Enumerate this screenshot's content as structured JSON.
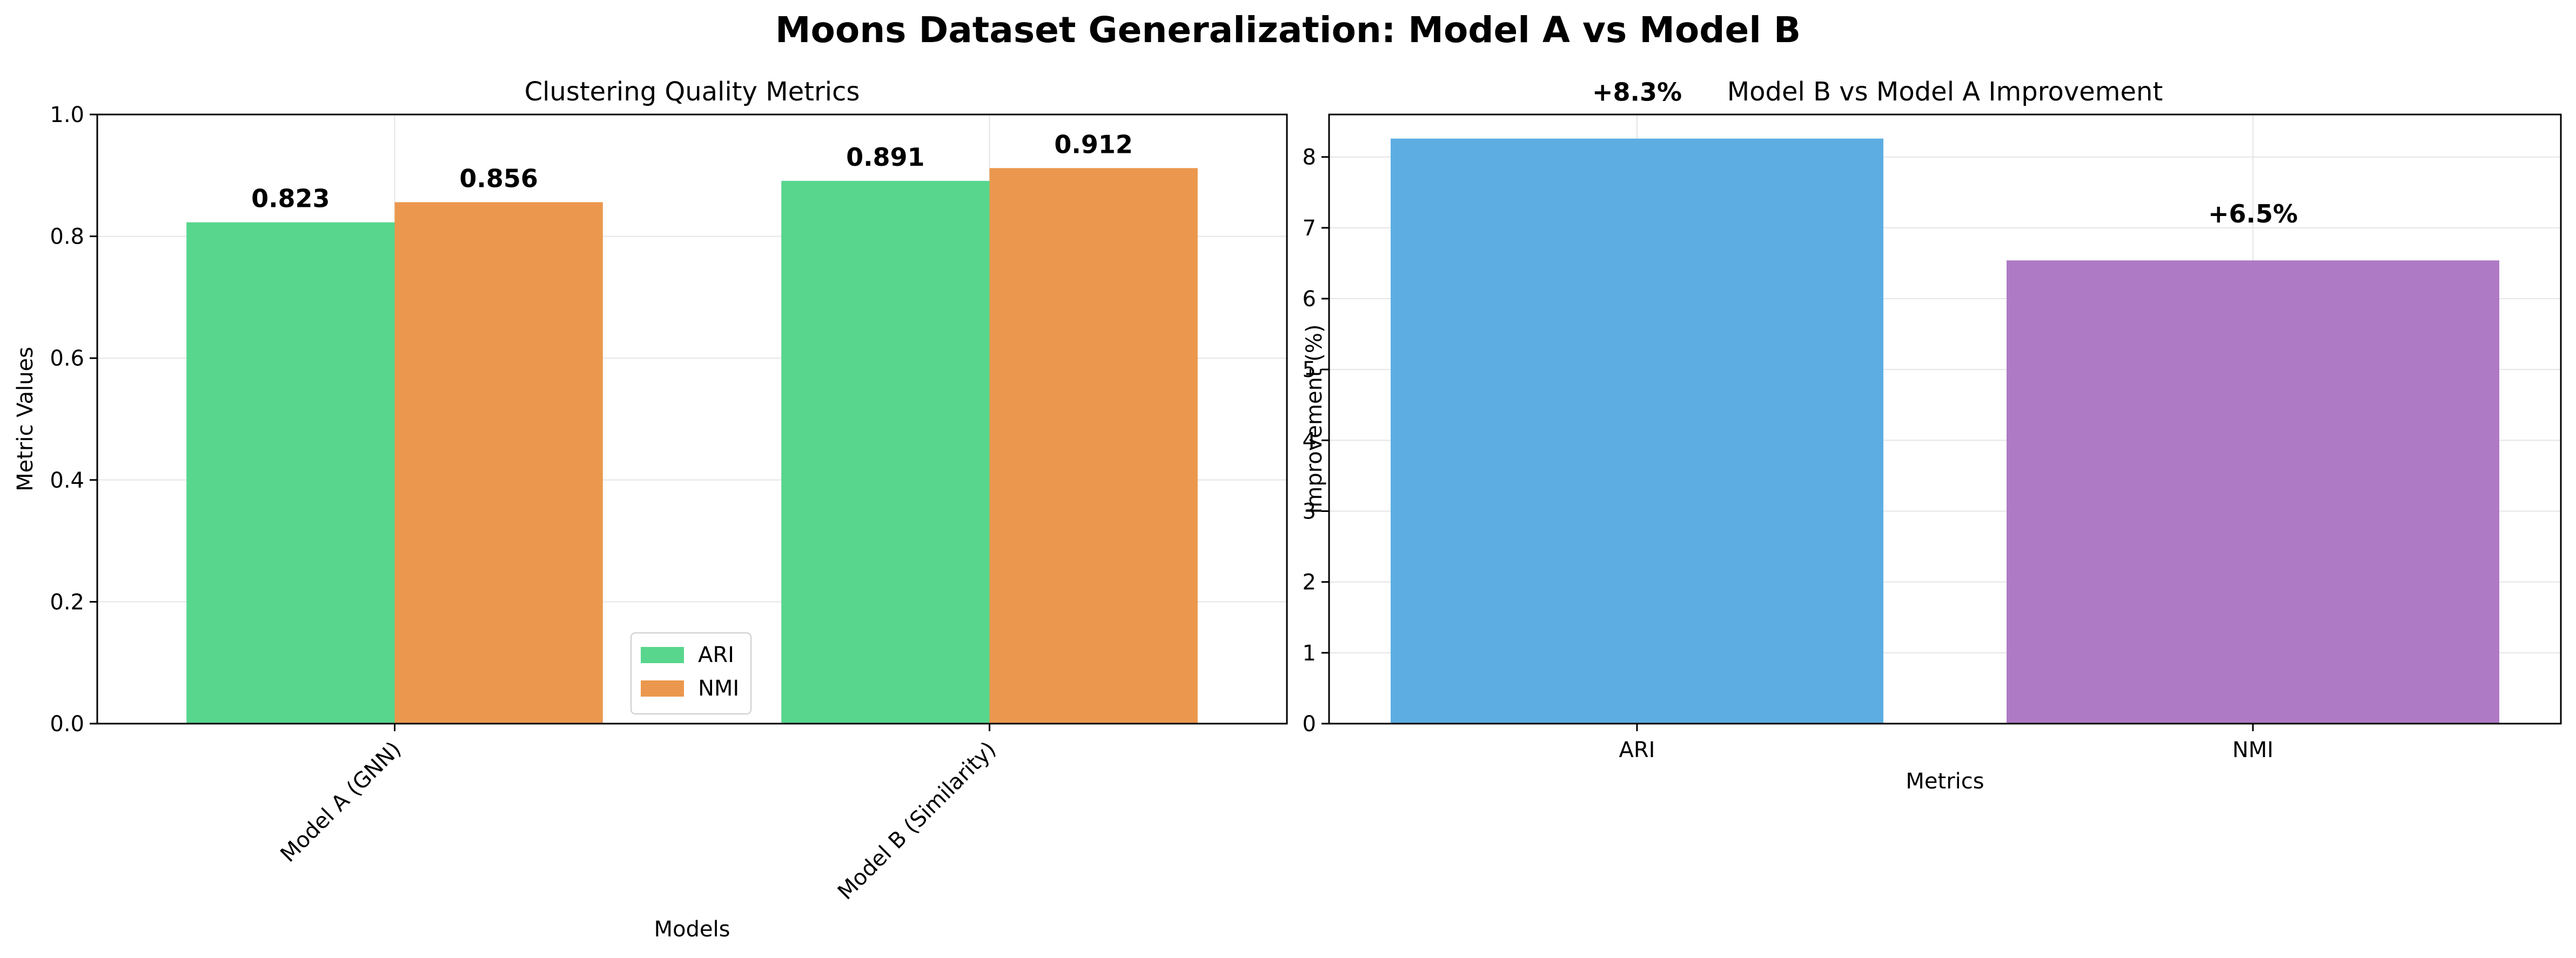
{
  "figure": {
    "title": "Moons Dataset Generalization: Model A vs Model B"
  },
  "chart_data": [
    {
      "type": "bar",
      "title": "Clustering Quality Metrics",
      "xlabel": "Models",
      "ylabel": "Metric Values",
      "categories": [
        "Model A (GNN)",
        "Model B (Similarity)"
      ],
      "series": [
        {
          "name": "ARI",
          "values": [
            0.823,
            0.891
          ],
          "color": "#58d68d"
        },
        {
          "name": "NMI",
          "values": [
            0.856,
            0.912
          ],
          "color": "#eb984e"
        }
      ],
      "data_labels": [
        [
          "0.823",
          "0.891"
        ],
        [
          "0.856",
          "0.912"
        ]
      ],
      "ylim": [
        0,
        1.0
      ],
      "yticks": [
        "0.0",
        "0.2",
        "0.4",
        "0.6",
        "0.8",
        "1.0"
      ],
      "ytick_values": [
        0,
        0.2,
        0.4,
        0.6,
        0.8,
        1.0
      ],
      "grid": true,
      "legend": "lower-center",
      "xtick_rotation": 45
    },
    {
      "type": "bar",
      "title": "Model B vs Model A Improvement",
      "xlabel": "Metrics",
      "ylabel": "Improvement (%)",
      "categories": [
        "ARI",
        "NMI"
      ],
      "values": [
        8.26,
        6.54
      ],
      "data_labels": [
        "+8.3%",
        "+6.5%"
      ],
      "colors": [
        "#5dade2",
        "#af7ac5"
      ],
      "ylim": [
        0,
        8.6
      ],
      "yticks": [
        "0",
        "1",
        "2",
        "3",
        "4",
        "5",
        "6",
        "7",
        "8"
      ],
      "ytick_values": [
        0,
        1,
        2,
        3,
        4,
        5,
        6,
        7,
        8
      ],
      "grid": true
    }
  ]
}
